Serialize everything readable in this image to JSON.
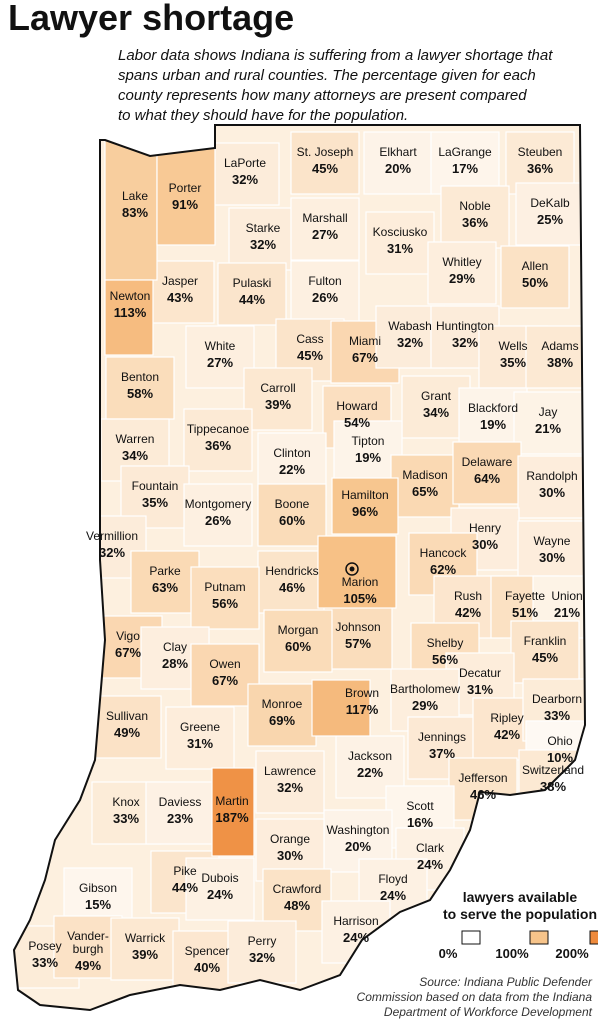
{
  "chart_data": {
    "type": "choropleth",
    "title": "Lawyer shortage",
    "subtitle": [
      "Labor data shows Indiana is suffering from a lawyer shortage that",
      "spans urban and rural counties. The percentage given for each",
      "county represents how many attorneys are present compared",
      "to what they should have for the population."
    ],
    "categories": [
      "Lake",
      "Porter",
      "LaPorte",
      "St. Joseph",
      "Elkhart",
      "LaGrange",
      "Steuben",
      "Noble",
      "DeKalb",
      "Starke",
      "Marshall",
      "Kosciusko",
      "Whitley",
      "Allen",
      "Jasper",
      "Pulaski",
      "Fulton",
      "Newton",
      "Cass",
      "Miami",
      "Wabash",
      "Huntington",
      "Wells",
      "Adams",
      "White",
      "Benton",
      "Carroll",
      "Grant",
      "Blackford",
      "Jay",
      "Howard",
      "Warren",
      "Tippecanoe",
      "Clinton",
      "Tipton",
      "Madison",
      "Delaware",
      "Randolph",
      "Fountain",
      "Montgomery",
      "Boone",
      "Hamilton",
      "Henry",
      "Vermillion",
      "Wayne",
      "Hendricks",
      "Marion",
      "Hancock",
      "Parke",
      "Putnam",
      "Rush",
      "Fayette",
      "Union",
      "Shelby",
      "Johnson",
      "Morgan",
      "Vigo",
      "Clay",
      "Franklin",
      "Owen",
      "Decatur",
      "Brown",
      "Monroe",
      "Bartholomew",
      "Sullivan",
      "Greene",
      "Jennings",
      "Ripley",
      "Dearborn",
      "Ohio",
      "Switzerland",
      "Jackson",
      "Lawrence",
      "Jefferson",
      "Knox",
      "Daviess",
      "Martin",
      "Scott",
      "Washington",
      "Orange",
      "Clark",
      "Pike",
      "Dubois",
      "Gibson",
      "Floyd",
      "Crawford",
      "Harrison",
      "Posey",
      "Vander-burgh",
      "Warrick",
      "Spencer",
      "Perry"
    ],
    "values": [
      83,
      91,
      32,
      45,
      20,
      17,
      36,
      36,
      25,
      32,
      27,
      31,
      29,
      50,
      43,
      44,
      26,
      113,
      45,
      67,
      32,
      32,
      35,
      38,
      27,
      58,
      39,
      34,
      19,
      21,
      54,
      34,
      36,
      22,
      19,
      65,
      64,
      30,
      35,
      26,
      60,
      96,
      30,
      32,
      30,
      46,
      105,
      62,
      63,
      56,
      42,
      51,
      21,
      56,
      57,
      60,
      67,
      28,
      45,
      67,
      31,
      117,
      69,
      29,
      49,
      31,
      37,
      42,
      33,
      10,
      38,
      22,
      32,
      46,
      33,
      23,
      187,
      16,
      20,
      30,
      24,
      44,
      24,
      15,
      24,
      48,
      24,
      33,
      49,
      39,
      40,
      32
    ],
    "value_labels": [
      "83%",
      "91%",
      "32%",
      "45%",
      "20%",
      "17%",
      "36%",
      "36%",
      "25%",
      "32%",
      "27%",
      "31%",
      "29%",
      "50%",
      "43%",
      "44%",
      "26%",
      "113%",
      "45%",
      "67%",
      "32%",
      "32%",
      "35%",
      "38%",
      "27%",
      "58%",
      "39%",
      "34%",
      "19%",
      "21%",
      "54%",
      "34%",
      "36%",
      "22%",
      "19%",
      "65%",
      "64%",
      "30%",
      "35%",
      "26%",
      "60%",
      "96%",
      "30%",
      "32%",
      "30%",
      "46%",
      "105%",
      "62%",
      "63%",
      "56%",
      "42%",
      "51%",
      "21%",
      "56%",
      "57%",
      "60%",
      "67%",
      "28%",
      "45%",
      "67%",
      "31%",
      "117%",
      "69%",
      "29%",
      "49%",
      "31%",
      "37%",
      "42%",
      "33%",
      "10%",
      "38%",
      "22%",
      "32%",
      "46%",
      "33%",
      "23%",
      "187%",
      "16%",
      "20%",
      "30%",
      "24%",
      "44%",
      "24%",
      "15%",
      "24%",
      "48%",
      "24%",
      "33%",
      "49%",
      "39%",
      "40%",
      "32%"
    ],
    "legend_title": [
      "lawyers available",
      "to serve the population"
    ],
    "color_scale": [
      {
        "value": 0,
        "label": "0%",
        "color": "#ffffff"
      },
      {
        "value": 100,
        "label": "100%",
        "color": "#f7c48a"
      },
      {
        "value": 200,
        "label": "200%",
        "color": "#ee8a3c"
      }
    ],
    "source": [
      "Source: Indiana Public Defender",
      "Commission based on data from the Indiana",
      "Department of Workforce Development"
    ]
  }
}
